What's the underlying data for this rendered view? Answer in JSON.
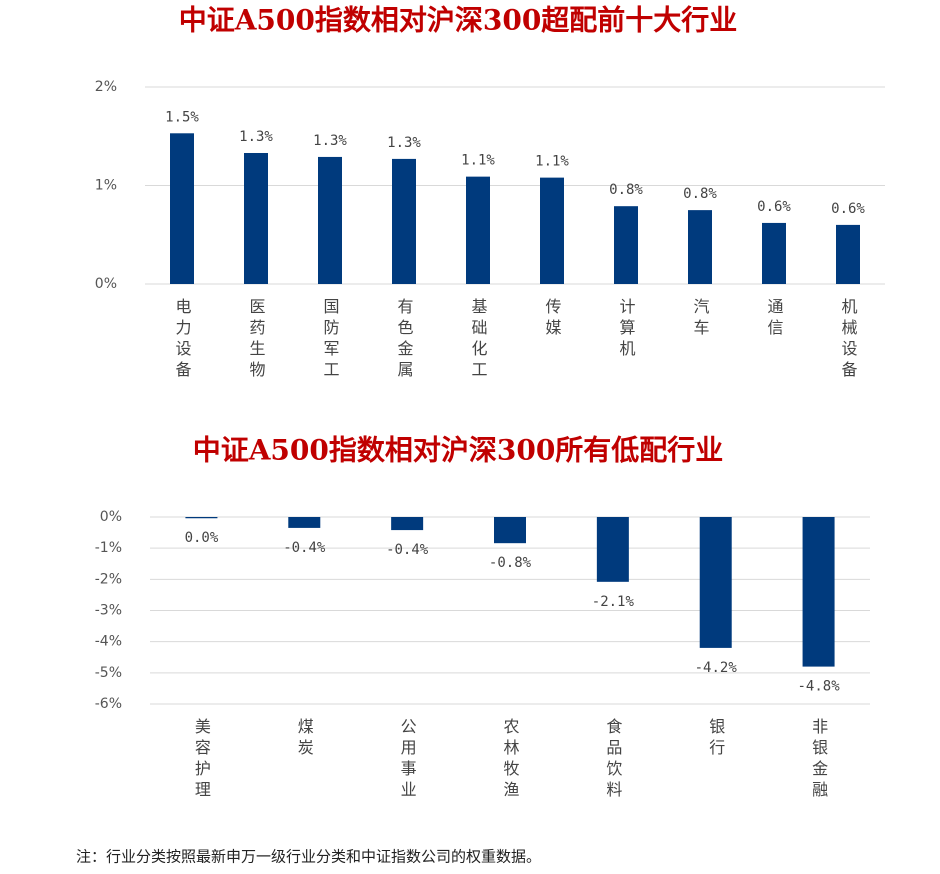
{
  "chart_data": [
    {
      "type": "bar",
      "title": "中证A500指数相对沪深300超配前十大行业",
      "categories": [
        "电力设备",
        "医药生物",
        "国防军工",
        "有色金属",
        "基础化工",
        "传媒",
        "计算机",
        "汽车",
        "通信",
        "机械设备"
      ],
      "values": [
        1.53,
        1.33,
        1.29,
        1.27,
        1.09,
        1.08,
        0.79,
        0.75,
        0.62,
        0.6
      ],
      "value_labels": [
        "1.5%",
        "1.3%",
        "1.3%",
        "1.3%",
        "1.1%",
        "1.1%",
        "0.8%",
        "0.8%",
        "0.6%",
        "0.6%"
      ],
      "color": "#003a7d",
      "ylim": [
        0,
        2
      ],
      "yticks": [
        {
          "value": 0,
          "label": "0%"
        },
        {
          "value": 1,
          "label": "1%"
        },
        {
          "value": 2,
          "label": "2%"
        }
      ],
      "grid": true
    },
    {
      "type": "bar",
      "title": "中证A500指数相对沪深300所有低配行业",
      "categories": [
        "美容护理",
        "煤炭",
        "公用事业",
        "农林牧渔",
        "食品饮料",
        "银行",
        "非银金融"
      ],
      "values": [
        -0.04,
        -0.35,
        -0.42,
        -0.84,
        -2.08,
        -4.2,
        -4.8
      ],
      "value_labels": [
        "0.0%",
        "-0.4%",
        "-0.4%",
        "-0.8%",
        "-2.1%",
        "-4.2%",
        "-4.8%"
      ],
      "color": "#003a7d",
      "ylim": [
        -6,
        0
      ],
      "yticks": [
        {
          "value": 0,
          "label": "0%"
        },
        {
          "value": -1,
          "label": "-1%"
        },
        {
          "value": -2,
          "label": "-2%"
        },
        {
          "value": -3,
          "label": "-3%"
        },
        {
          "value": -4,
          "label": "-4%"
        },
        {
          "value": -5,
          "label": "-5%"
        },
        {
          "value": -6,
          "label": "-6%"
        }
      ],
      "grid": true
    }
  ],
  "note": "注：行业分类按照最新申万一级行业分类和中证指数公司的权重数据。"
}
